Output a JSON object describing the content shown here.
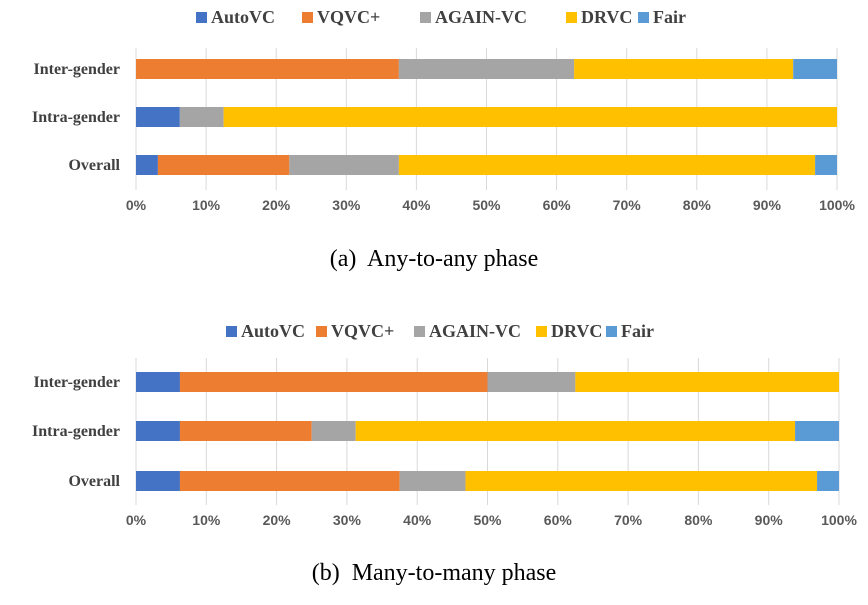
{
  "colors": {
    "AutoVC": "#4472C4",
    "VQVC+": "#ED7D31",
    "AGAIN-VC": "#A5A5A5",
    "DRVC": "#FFC000",
    "Fair": "#5B9BD5"
  },
  "chart_data": [
    {
      "type": "bar",
      "orientation": "horizontal",
      "stacked": true,
      "caption": "(a)  Any-to-any phase",
      "legend": [
        "AutoVC",
        "VQVC+",
        "AGAIN-VC",
        "DRVC",
        "Fair"
      ],
      "legend_position": "top",
      "categories": [
        "Inter-gender",
        "Intra-gender",
        "Overall"
      ],
      "series": [
        {
          "name": "AutoVC",
          "values": [
            0,
            6.25,
            3.125
          ]
        },
        {
          "name": "VQVC+",
          "values": [
            37.5,
            0,
            18.75
          ]
        },
        {
          "name": "AGAIN-VC",
          "values": [
            25,
            6.25,
            15.625
          ]
        },
        {
          "name": "DRVC",
          "values": [
            31.25,
            87.5,
            59.375
          ]
        },
        {
          "name": "Fair",
          "values": [
            6.25,
            0,
            3.125
          ]
        }
      ],
      "xlim": [
        0,
        100
      ],
      "xticks": [
        "0%",
        "10%",
        "20%",
        "30%",
        "40%",
        "50%",
        "60%",
        "70%",
        "80%",
        "90%",
        "100%"
      ],
      "grid": true
    },
    {
      "type": "bar",
      "orientation": "horizontal",
      "stacked": true,
      "caption": "(b)  Many-to-many phase",
      "legend": [
        "AutoVC",
        "VQVC+",
        "AGAIN-VC",
        "DRVC",
        "Fair"
      ],
      "legend_position": "top",
      "categories": [
        "Inter-gender",
        "Intra-gender",
        "Overall"
      ],
      "series": [
        {
          "name": "AutoVC",
          "values": [
            6.25,
            6.25,
            6.25
          ]
        },
        {
          "name": "VQVC+",
          "values": [
            43.75,
            18.75,
            31.25
          ]
        },
        {
          "name": "AGAIN-VC",
          "values": [
            12.5,
            6.25,
            9.375
          ]
        },
        {
          "name": "DRVC",
          "values": [
            37.5,
            62.5,
            50
          ]
        },
        {
          "name": "Fair",
          "values": [
            0,
            6.25,
            3.125
          ]
        }
      ],
      "xlim": [
        0,
        100
      ],
      "xticks": [
        "0%",
        "10%",
        "20%",
        "30%",
        "40%",
        "50%",
        "60%",
        "70%",
        "80%",
        "90%",
        "100%"
      ],
      "grid": true
    }
  ]
}
